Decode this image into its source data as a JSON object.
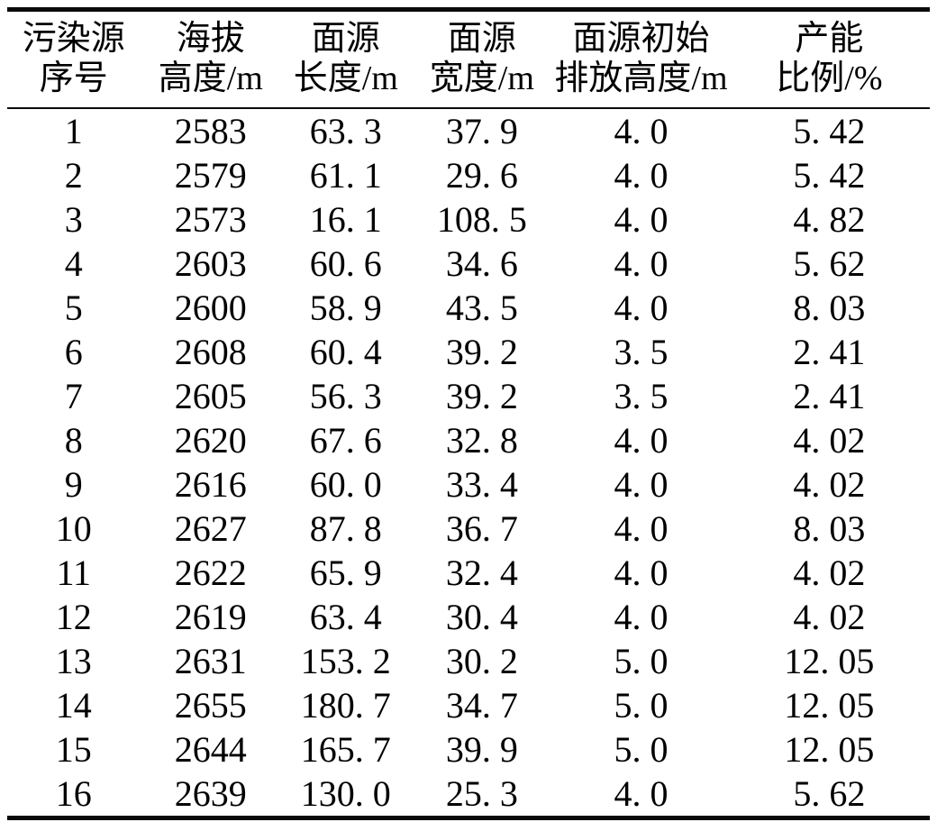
{
  "table": {
    "headers": [
      {
        "line1": "污染源",
        "line2": "序号"
      },
      {
        "line1": "海拔",
        "line2": "高度/m"
      },
      {
        "line1": "面源",
        "line2": "长度/m"
      },
      {
        "line1": "面源",
        "line2": "宽度/m"
      },
      {
        "line1": "面源初始",
        "line2": "排放高度/m"
      },
      {
        "line1": "产能",
        "line2": "比例/%"
      }
    ],
    "column_keys": [
      "source_id",
      "elevation_m",
      "length_m",
      "width_m",
      "initial_emission_height_m",
      "capacity_ratio_pct"
    ],
    "rows": [
      [
        "1",
        "2583",
        "63. 3",
        "37. 9",
        "4. 0",
        "5. 42"
      ],
      [
        "2",
        "2579",
        "61. 1",
        "29. 6",
        "4. 0",
        "5. 42"
      ],
      [
        "3",
        "2573",
        "16. 1",
        "108. 5",
        "4. 0",
        "4. 82"
      ],
      [
        "4",
        "2603",
        "60. 6",
        "34. 6",
        "4. 0",
        "5. 62"
      ],
      [
        "5",
        "2600",
        "58. 9",
        "43. 5",
        "4. 0",
        "8. 03"
      ],
      [
        "6",
        "2608",
        "60. 4",
        "39. 2",
        "3. 5",
        "2. 41"
      ],
      [
        "7",
        "2605",
        "56. 3",
        "39. 2",
        "3. 5",
        "2. 41"
      ],
      [
        "8",
        "2620",
        "67. 6",
        "32. 8",
        "4. 0",
        "4. 02"
      ],
      [
        "9",
        "2616",
        "60. 0",
        "33. 4",
        "4. 0",
        "4. 02"
      ],
      [
        "10",
        "2627",
        "87. 8",
        "36. 7",
        "4. 0",
        "8. 03"
      ],
      [
        "11",
        "2622",
        "65. 9",
        "32. 4",
        "4. 0",
        "4. 02"
      ],
      [
        "12",
        "2619",
        "63. 4",
        "30. 4",
        "4. 0",
        "4. 02"
      ],
      [
        "13",
        "2631",
        "153. 2",
        "30. 2",
        "5. 0",
        "12. 05"
      ],
      [
        "14",
        "2655",
        "180. 7",
        "34. 7",
        "5. 0",
        "12. 05"
      ],
      [
        "15",
        "2644",
        "165. 7",
        "39. 9",
        "5. 0",
        "12. 05"
      ],
      [
        "16",
        "2639",
        "130. 0",
        "25. 3",
        "4. 0",
        "5. 62"
      ]
    ],
    "colors": {
      "rule": "#0a0a0a",
      "text": "#000000",
      "background": "#ffffff"
    }
  }
}
